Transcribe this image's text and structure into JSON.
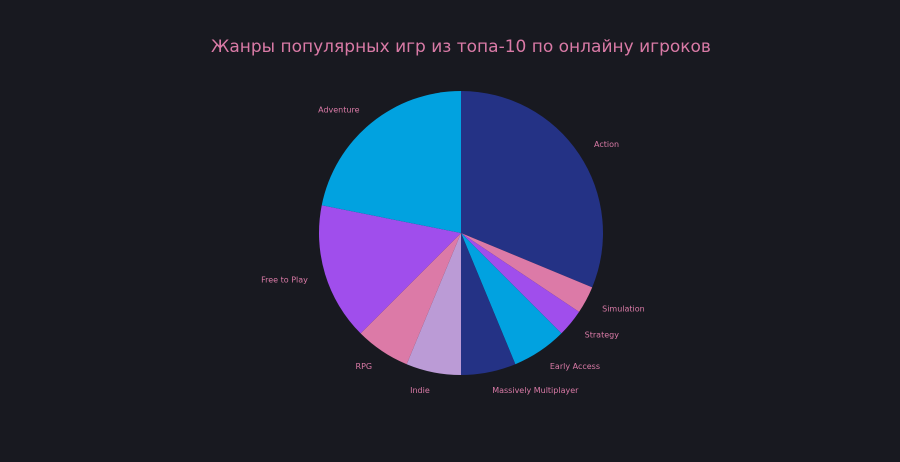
{
  "chart_data": {
    "type": "pie",
    "title": "Жанры популярных игр из топа-10 по онлайну игроков",
    "direction": "clockwise",
    "start_angle_deg": 90,
    "categories": [
      "Action",
      "Simulation",
      "Strategy",
      "Early Access",
      "Massively Multiplayer",
      "Indie",
      "RPG",
      "Free to Play",
      "Adventure"
    ],
    "values": [
      10,
      1,
      1,
      2,
      2,
      2,
      2,
      5,
      7
    ],
    "colors": [
      "#243285",
      "#dc7aa7",
      "#a04eec",
      "#01a2e0",
      "#243285",
      "#bb9bd6",
      "#dc7aa7",
      "#a04eec",
      "#01a2e0"
    ],
    "legend": "none",
    "label_position": "outside"
  }
}
